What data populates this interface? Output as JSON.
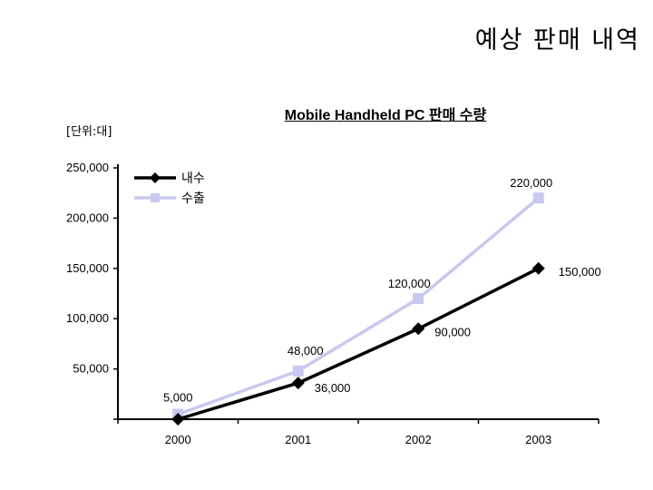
{
  "page": {
    "title": "예상 판매 내역"
  },
  "chart_data": {
    "type": "line",
    "title": "Mobile Handheld PC 판매 수량",
    "unit_label": "[단위:대]",
    "categories": [
      "2000",
      "2001",
      "2002",
      "2003"
    ],
    "ylim": [
      0,
      250000
    ],
    "y_ticks": [
      {
        "value": 0,
        "label": ""
      },
      {
        "value": 50000,
        "label": "50,000"
      },
      {
        "value": 100000,
        "label": "100,000"
      },
      {
        "value": 150000,
        "label": "150,000"
      },
      {
        "value": 200000,
        "label": "200,000"
      },
      {
        "value": 250000,
        "label": "250,000"
      }
    ],
    "grid": false,
    "legend_position": "top-left",
    "series": [
      {
        "name": "내수",
        "color": "#000000",
        "marker": "diamond",
        "values": [
          0,
          36000,
          90000,
          150000
        ],
        "data_labels": [
          "",
          "36,000",
          "90,000",
          "150,000"
        ]
      },
      {
        "name": "수출",
        "color": "#c8c8f0",
        "marker": "square",
        "values": [
          5000,
          48000,
          120000,
          220000
        ],
        "data_labels": [
          "5,000",
          "48,000",
          "120,000",
          "220,000"
        ]
      }
    ]
  }
}
